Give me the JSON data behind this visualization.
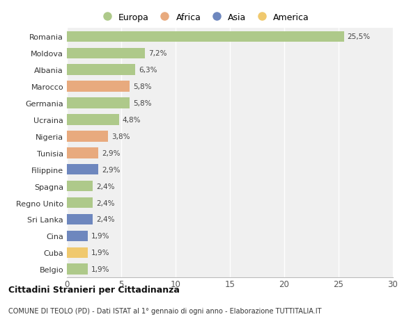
{
  "countries": [
    "Romania",
    "Moldova",
    "Albania",
    "Marocco",
    "Germania",
    "Ucraina",
    "Nigeria",
    "Tunisia",
    "Filippine",
    "Spagna",
    "Regno Unito",
    "Sri Lanka",
    "Cina",
    "Cuba",
    "Belgio"
  ],
  "values": [
    25.5,
    7.2,
    6.3,
    5.8,
    5.8,
    4.8,
    3.8,
    2.9,
    2.9,
    2.4,
    2.4,
    2.4,
    1.9,
    1.9,
    1.9
  ],
  "labels": [
    "25,5%",
    "7,2%",
    "6,3%",
    "5,8%",
    "5,8%",
    "4,8%",
    "3,8%",
    "2,9%",
    "2,9%",
    "2,4%",
    "2,4%",
    "2,4%",
    "1,9%",
    "1,9%",
    "1,9%"
  ],
  "continents": [
    "Europa",
    "Europa",
    "Europa",
    "Africa",
    "Europa",
    "Europa",
    "Africa",
    "Africa",
    "Asia",
    "Europa",
    "Europa",
    "Asia",
    "Asia",
    "America",
    "Europa"
  ],
  "colors": {
    "Europa": "#aec98a",
    "Africa": "#e8aa7e",
    "Asia": "#6e87be",
    "America": "#f0c96e"
  },
  "title1": "Cittadini Stranieri per Cittadinanza",
  "title2": "COMUNE DI TEOLO (PD) - Dati ISTAT al 1° gennaio di ogni anno - Elaborazione TUTTITALIA.IT",
  "xlim": [
    0,
    30
  ],
  "xticks": [
    0,
    5,
    10,
    15,
    20,
    25,
    30
  ],
  "background_color": "#ffffff",
  "bar_background": "#f0f0f0"
}
